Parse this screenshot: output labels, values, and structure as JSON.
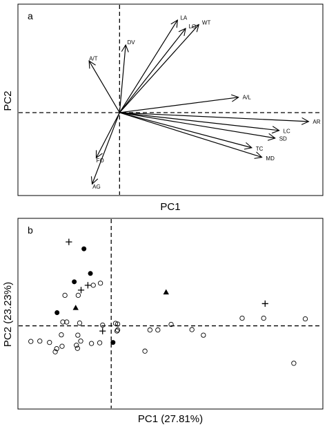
{
  "chart_data": [
    {
      "type": "biplot-vectors",
      "panel_label": "a",
      "xlabel": "PC1",
      "ylabel": "PC2",
      "xlim": [
        -1.0,
        2.0
      ],
      "ylim": [
        -1.3,
        1.7
      ],
      "origin": [
        0,
        0
      ],
      "reference_lines": {
        "x": 0,
        "y": 0,
        "style": "dashed"
      },
      "vectors": [
        {
          "label": "LA",
          "x": 0.57,
          "y": 1.45
        },
        {
          "label": "LO",
          "x": 0.65,
          "y": 1.32
        },
        {
          "label": "WT",
          "x": 0.78,
          "y": 1.38
        },
        {
          "label": "DV",
          "x": 0.06,
          "y": 1.06
        },
        {
          "label": "A/T",
          "x": -0.3,
          "y": 0.81
        },
        {
          "label": "A/L",
          "x": 1.17,
          "y": 0.24
        },
        {
          "label": "AR",
          "x": 1.86,
          "y": -0.14
        },
        {
          "label": "LC",
          "x": 1.57,
          "y": -0.28
        },
        {
          "label": "SD",
          "x": 1.53,
          "y": -0.4
        },
        {
          "label": "TC",
          "x": 1.3,
          "y": -0.55
        },
        {
          "label": "MD",
          "x": 1.4,
          "y": -0.7
        },
        {
          "label": "FO",
          "x": -0.23,
          "y": -0.71
        },
        {
          "label": "AG",
          "x": -0.27,
          "y": -1.12
        }
      ]
    },
    {
      "type": "scatter",
      "panel_label": "b",
      "xlabel": "PC1 (27.81%)",
      "ylabel": "PC2 (23.23%)",
      "xlim": [
        -2.6,
        5.9
      ],
      "ylim": [
        -2.4,
        3.1
      ],
      "reference_lines": {
        "x": 0,
        "y": 0,
        "style": "dashed"
      },
      "marker_legend": {
        "open_circle": "open circle",
        "filled_circle": "filled circle",
        "filled_triangle": "filled triangle",
        "plus": "plus"
      },
      "groups": [
        {
          "marker": "open_circle",
          "points": [
            [
              -0.3,
              1.23
            ],
            [
              -0.5,
              1.17
            ],
            [
              -0.92,
              0.88
            ],
            [
              -1.29,
              0.88
            ],
            [
              -1.35,
              0.11
            ],
            [
              -1.24,
              0.11
            ],
            [
              -0.88,
              0.08
            ],
            [
              -0.24,
              0.02
            ],
            [
              0.12,
              0.07
            ],
            [
              0.18,
              0.05
            ],
            [
              0.18,
              -0.12
            ],
            [
              0.16,
              -0.15
            ],
            [
              1.67,
              0.04
            ],
            [
              1.3,
              -0.12
            ],
            [
              1.08,
              -0.12
            ],
            [
              2.25,
              -0.11
            ],
            [
              2.57,
              -0.27
            ],
            [
              3.65,
              0.22
            ],
            [
              4.25,
              0.22
            ],
            [
              5.41,
              0.2
            ],
            [
              -1.39,
              -0.26
            ],
            [
              -0.93,
              -0.27
            ],
            [
              -0.85,
              -0.44
            ],
            [
              -2.24,
              -0.45
            ],
            [
              -1.99,
              -0.44
            ],
            [
              -1.72,
              -0.48
            ],
            [
              -1.37,
              -0.59
            ],
            [
              -0.97,
              -0.56
            ],
            [
              -0.32,
              -0.49
            ],
            [
              -1.52,
              -0.66
            ],
            [
              -1.56,
              -0.75
            ],
            [
              -0.94,
              -0.65
            ],
            [
              -0.55,
              -0.51
            ],
            [
              0.94,
              -0.73
            ],
            [
              5.09,
              -1.08
            ]
          ]
        },
        {
          "marker": "filled_circle",
          "points": [
            [
              -0.76,
              2.22
            ],
            [
              -0.58,
              1.51
            ],
            [
              -1.03,
              1.27
            ],
            [
              -1.51,
              0.38
            ],
            [
              0.05,
              -0.48
            ]
          ]
        },
        {
          "marker": "filled_triangle",
          "points": [
            [
              -0.99,
              0.52
            ],
            [
              1.53,
              0.97
            ]
          ]
        },
        {
          "marker": "plus",
          "points": [
            [
              -1.18,
              2.42
            ],
            [
              -0.65,
              1.17
            ],
            [
              -0.84,
              1.03
            ],
            [
              4.29,
              0.64
            ],
            [
              -0.24,
              -0.15
            ]
          ]
        }
      ]
    }
  ]
}
